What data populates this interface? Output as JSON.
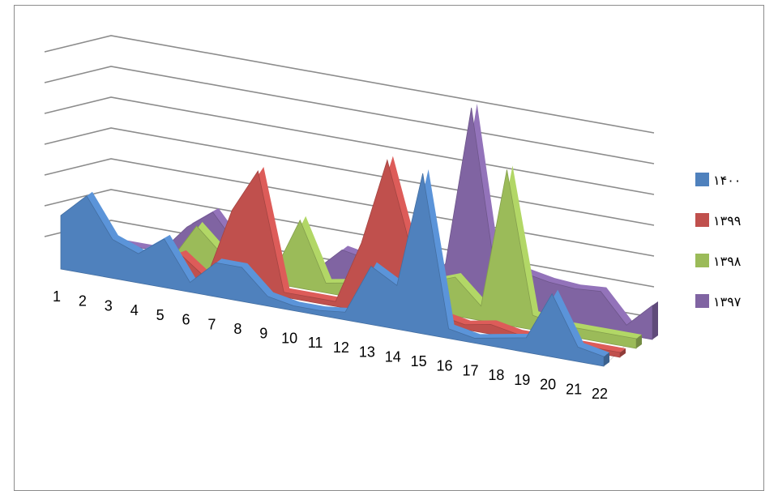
{
  "chart_data": {
    "type": "area",
    "title": "",
    "xlabel": "",
    "ylabel": "",
    "grid": true,
    "legend": "right",
    "categories": [
      "1",
      "2",
      "3",
      "4",
      "5",
      "6",
      "7",
      "8",
      "9",
      "10",
      "11",
      "12",
      "13",
      "14",
      "15",
      "16",
      "17",
      "18",
      "19",
      "20",
      "21",
      "22"
    ],
    "series": [
      {
        "name": "۱۳۹۷",
        "color": "#8064a2",
        "values": [
          0,
          0,
          0,
          30,
          50,
          18,
          8,
          10,
          10,
          35,
          30,
          5,
          5,
          40,
          205,
          25,
          45,
          40,
          38,
          40,
          10,
          35
        ]
      },
      {
        "name": "۱۳۹۸",
        "color": "#9bbb59",
        "values": [
          0,
          0,
          0,
          5,
          45,
          20,
          5,
          12,
          70,
          10,
          15,
          10,
          10,
          30,
          40,
          15,
          160,
          15,
          10,
          10,
          10,
          10
        ]
      },
      {
        "name": "۱۳۹۹",
        "color": "#c0504d",
        "values": [
          0,
          0,
          0,
          10,
          25,
          5,
          80,
          125,
          5,
          5,
          5,
          70,
          160,
          65,
          10,
          5,
          10,
          5,
          5,
          5,
          5,
          5
        ]
      },
      {
        "name": "۱۴۰۰",
        "color": "#4f81bd",
        "values": [
          55,
          80,
          40,
          30,
          50,
          10,
          35,
          35,
          10,
          5,
          5,
          8,
          60,
          45,
          165,
          10,
          5,
          10,
          15,
          65,
          15,
          10
        ]
      }
    ]
  }
}
